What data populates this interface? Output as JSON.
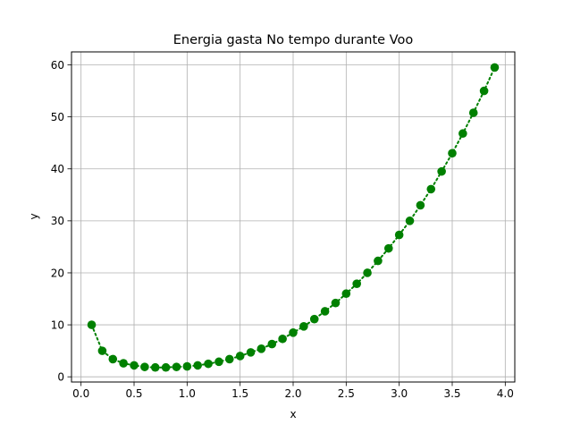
{
  "chart_data": {
    "type": "line",
    "title": "Energia gasta No tempo durante Voo",
    "xlabel": "x",
    "ylabel": "y",
    "xlim": [
      -0.09,
      4.09
    ],
    "ylim": [
      -1.0,
      62.5
    ],
    "xticks": [
      0.0,
      0.5,
      1.0,
      1.5,
      2.0,
      2.5,
      3.0,
      3.5,
      4.0
    ],
    "xtick_labels": [
      "0.0",
      "0.5",
      "1.0",
      "1.5",
      "2.0",
      "2.5",
      "3.0",
      "3.5",
      "4.0"
    ],
    "yticks": [
      0,
      10,
      20,
      30,
      40,
      50,
      60
    ],
    "ytick_labels": [
      "0",
      "10",
      "20",
      "30",
      "40",
      "50",
      "60"
    ],
    "grid": true,
    "legend": "none",
    "series": [
      {
        "color": "#008000",
        "line_style": "dotted",
        "marker": "circle",
        "x": [
          0.1,
          0.2,
          0.3,
          0.4,
          0.5,
          0.6,
          0.7,
          0.8,
          0.9,
          1.0,
          1.1,
          1.2,
          1.3,
          1.4,
          1.5,
          1.6,
          1.7,
          1.8,
          1.9,
          2.0,
          2.1,
          2.2,
          2.3,
          2.4,
          2.5,
          2.6,
          2.7,
          2.8,
          2.9,
          3.0,
          3.1,
          3.2,
          3.3,
          3.4,
          3.5,
          3.6,
          3.7,
          3.8,
          3.9
        ],
        "y": [
          10.0,
          5.0,
          3.4,
          2.6,
          2.2,
          1.9,
          1.8,
          1.8,
          1.9,
          2.0,
          2.2,
          2.5,
          2.9,
          3.4,
          4.0,
          4.7,
          5.4,
          6.3,
          7.3,
          8.5,
          9.7,
          11.1,
          12.6,
          14.2,
          16.0,
          17.9,
          20.0,
          22.3,
          24.7,
          27.3,
          30.0,
          33.0,
          36.1,
          39.5,
          43.0,
          46.8,
          50.8,
          55.0,
          59.5
        ]
      }
    ]
  },
  "colors": {
    "series": "#008000",
    "grid": "#b0b0b0",
    "axes": "#000000"
  }
}
